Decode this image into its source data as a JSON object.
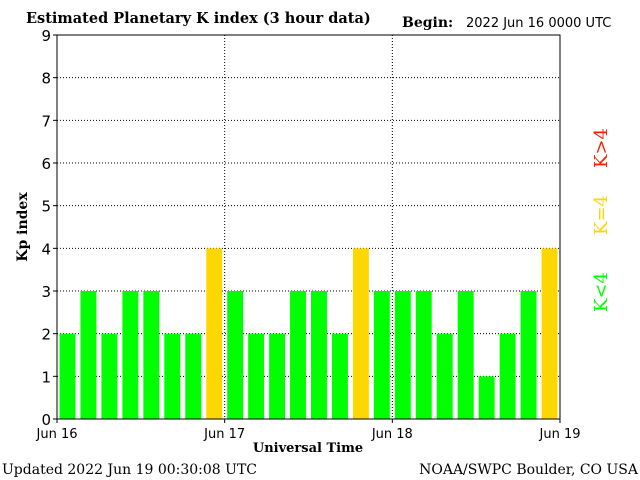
{
  "header": {
    "title": "Estimated Planetary K index (3 hour data)",
    "begin_label": "Begin:",
    "begin_value": "2022 Jun 16 0000 UTC"
  },
  "footer": {
    "updated": "Updated 2022 Jun 19 00:30:08 UTC",
    "credit": "NOAA/SWPC Boulder, CO USA"
  },
  "legend": {
    "items": [
      {
        "label": "K<4",
        "color": "#00ff00"
      },
      {
        "label": "K=4",
        "color": "#ffd700"
      },
      {
        "label": "K>4",
        "color": "#ff2000"
      }
    ]
  },
  "chart_data": {
    "type": "bar",
    "title": "Estimated Planetary K index (3 hour data)",
    "xlabel": "Universal Time",
    "ylabel": "Kp index",
    "ylim": [
      0,
      9
    ],
    "yticks": [
      "0",
      "1",
      "2",
      "3",
      "4",
      "5",
      "6",
      "7",
      "8",
      "9"
    ],
    "xticks": [
      "Jun 16",
      "Jun 17",
      "Jun 18",
      "Jun 19"
    ],
    "grid": true,
    "bars_per_day": 8,
    "values": [
      2,
      3,
      2,
      3,
      3,
      2,
      2,
      4,
      3,
      2,
      2,
      3,
      3,
      2,
      4,
      3,
      3,
      3,
      2,
      3,
      1,
      2,
      3,
      4
    ],
    "colors": {
      "below4": "#00ff00",
      "equal4": "#ffd700",
      "above4": "#ff2000"
    }
  }
}
